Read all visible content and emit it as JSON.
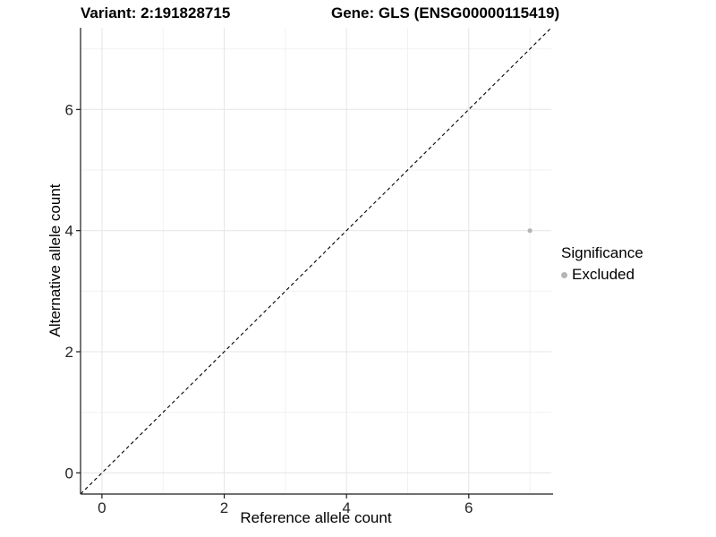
{
  "chart_data": {
    "type": "scatter",
    "title_left": "Variant: 2:191828715",
    "title_right": "Gene: GLS (ENSG00000115419)",
    "xlabel": "Reference allele count",
    "ylabel": "Alternative allele count",
    "xlim": [
      -0.35,
      7.35
    ],
    "ylim": [
      -0.35,
      7.35
    ],
    "x_ticks": [
      0,
      2,
      4,
      6
    ],
    "y_ticks": [
      0,
      2,
      4,
      6
    ],
    "minor_gridlines": [
      1,
      3,
      5,
      7
    ],
    "grid": true,
    "identity_line": {
      "style": "dashed",
      "color": "#000000"
    },
    "series": [
      {
        "name": "Excluded",
        "color": "#b5b5b5",
        "points": [
          {
            "x": 7,
            "y": 4
          }
        ]
      }
    ],
    "legend": {
      "title": "Significance",
      "position": "right",
      "items": [
        {
          "label": "Excluded",
          "color": "#b5b5b5"
        }
      ]
    },
    "colors": {
      "axis_line": "#1a1a1a",
      "tick_text": "#262626",
      "grid_major": "#e7e7e7",
      "grid_minor": "#f0f0f0",
      "background": "#ffffff"
    }
  }
}
